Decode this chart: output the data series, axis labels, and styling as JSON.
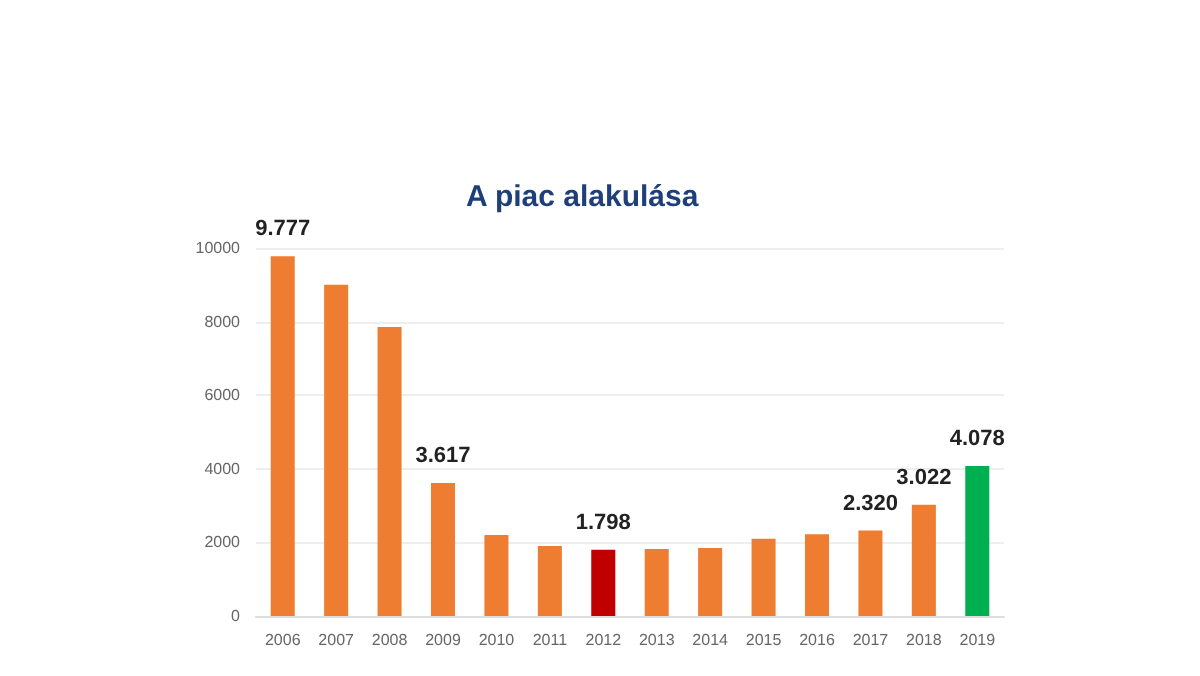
{
  "chart_data": {
    "type": "bar",
    "title": "A piac alakulása",
    "categories": [
      "2006",
      "2007",
      "2008",
      "2009",
      "2010",
      "2011",
      "2012",
      "2013",
      "2014",
      "2015",
      "2016",
      "2017",
      "2018",
      "2019"
    ],
    "values": [
      9777,
      9000,
      7850,
      3617,
      2200,
      1900,
      1798,
      1820,
      1850,
      2100,
      2220,
      2320,
      3022,
      4078
    ],
    "value_labels": [
      "9.777",
      null,
      null,
      "3.617",
      null,
      null,
      "1.798",
      null,
      null,
      null,
      null,
      "2.320",
      "3.022",
      "4.078"
    ],
    "colors": [
      "#ef7d31",
      "#ef7d31",
      "#ef7d31",
      "#ef7d31",
      "#ef7d31",
      "#ef7d31",
      "#c00000",
      "#ef7d31",
      "#ef7d31",
      "#ef7d31",
      "#ef7d31",
      "#ef7d31",
      "#ef7d31",
      "#00b050"
    ],
    "ylim": [
      0,
      10000
    ],
    "yticks": [
      0,
      2000,
      4000,
      6000,
      8000,
      10000
    ],
    "grid": "y"
  }
}
